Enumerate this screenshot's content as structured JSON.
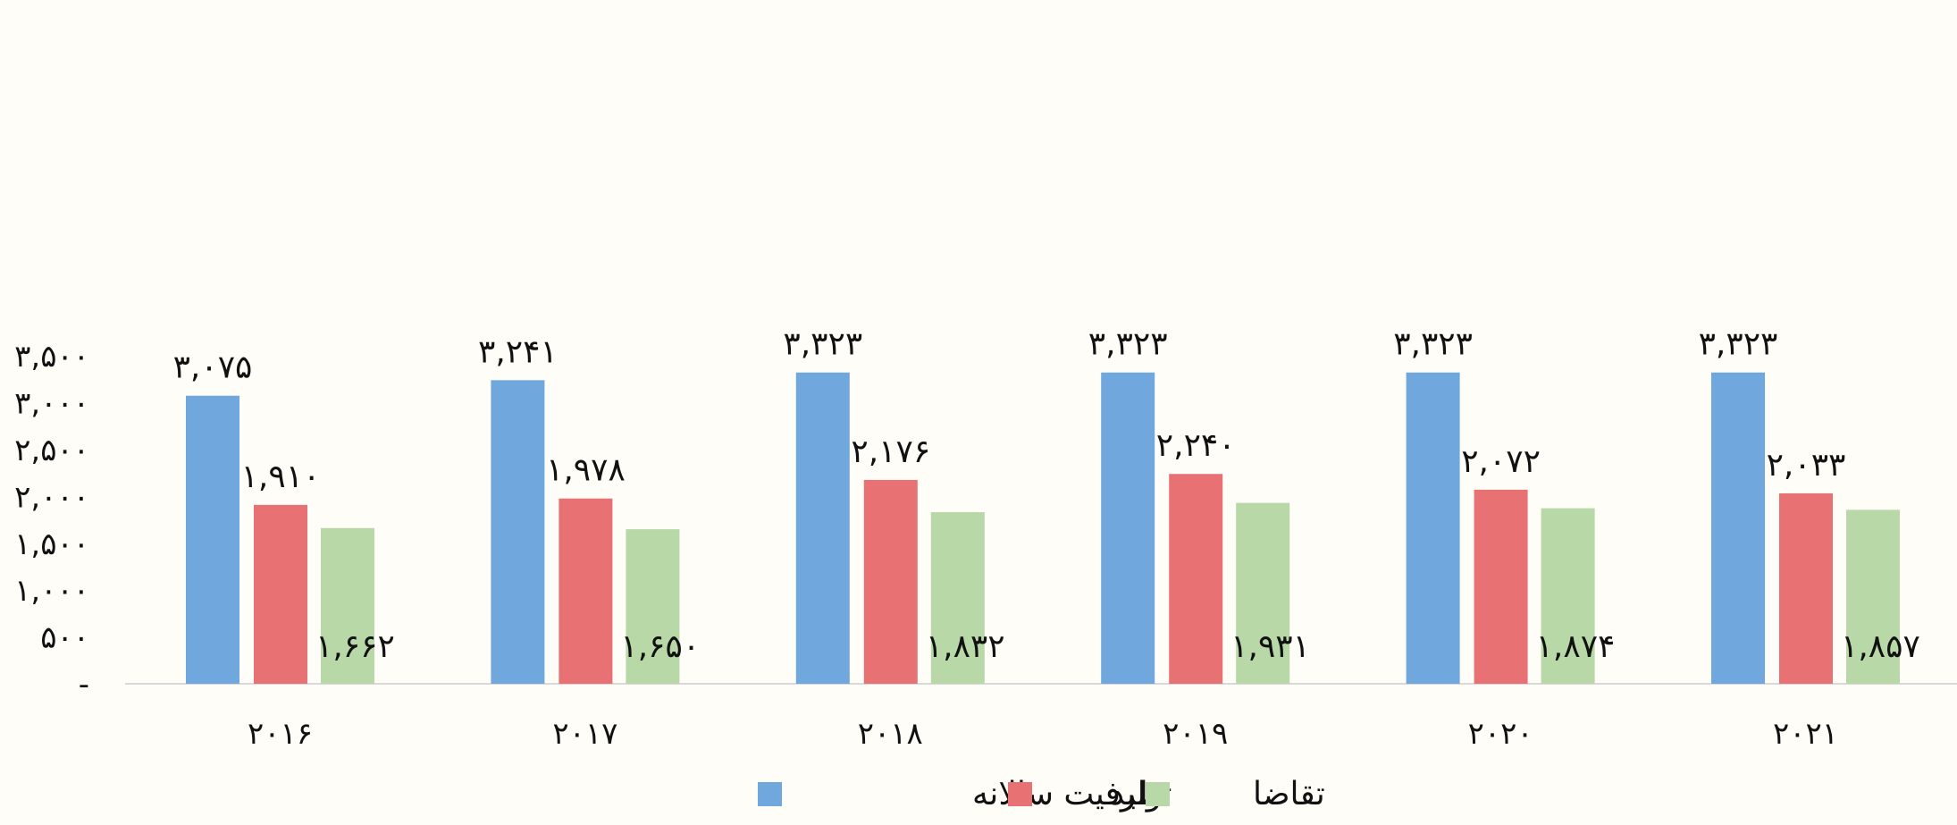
{
  "chart_data": {
    "type": "bar",
    "title": "",
    "xlabel": "",
    "ylabel": "",
    "categories": [
      "۲۰۱۶",
      "۲۰۱۷",
      "۲۰۱۸",
      "۲۰۱۹",
      "۲۰۲۰",
      "۲۰۲۱"
    ],
    "ylim": [
      0,
      3500
    ],
    "yticks": [
      {
        "value": 0,
        "label": "-"
      },
      {
        "value": 500,
        "label": "۵۰۰"
      },
      {
        "value": 1000,
        "label": "۱,۰۰۰"
      },
      {
        "value": 1500,
        "label": "۱,۵۰۰"
      },
      {
        "value": 2000,
        "label": "۲,۰۰۰"
      },
      {
        "value": 2500,
        "label": "۲,۵۰۰"
      },
      {
        "value": 3000,
        "label": "۳,۰۰۰"
      },
      {
        "value": 3500,
        "label": "۳,۵۰۰"
      }
    ],
    "grid": false,
    "legend_position": "bottom",
    "series": [
      {
        "name": "ظرفیت سالانه",
        "color": "#70a8de",
        "values": [
          3075,
          3241,
          3323,
          3323,
          3323,
          3323
        ],
        "labels": [
          "۳,۰۷۵",
          "۳,۲۴۱",
          "۳,۳۲۳",
          "۳,۳۲۳",
          "۳,۳۲۳",
          "۳,۳۲۳"
        ]
      },
      {
        "name": "تولید",
        "color": "#e87273",
        "values": [
          1910,
          1978,
          2176,
          2240,
          2072,
          2033
        ],
        "labels": [
          "۱,۹۱۰",
          "۱,۹۷۸",
          "۲,۱۷۶",
          "۲,۲۴۰",
          "۲,۰۷۲",
          "۲,۰۳۳"
        ]
      },
      {
        "name": "تقاضا",
        "color": "#b8d8a8",
        "values": [
          1662,
          1650,
          1832,
          1931,
          1874,
          1857
        ],
        "labels": [
          "۱,۶۶۲",
          "۱,۶۵۰",
          "۱,۸۳۲",
          "۱,۹۳۱",
          "۱,۸۷۴",
          "۱,۸۵۷"
        ]
      }
    ]
  }
}
